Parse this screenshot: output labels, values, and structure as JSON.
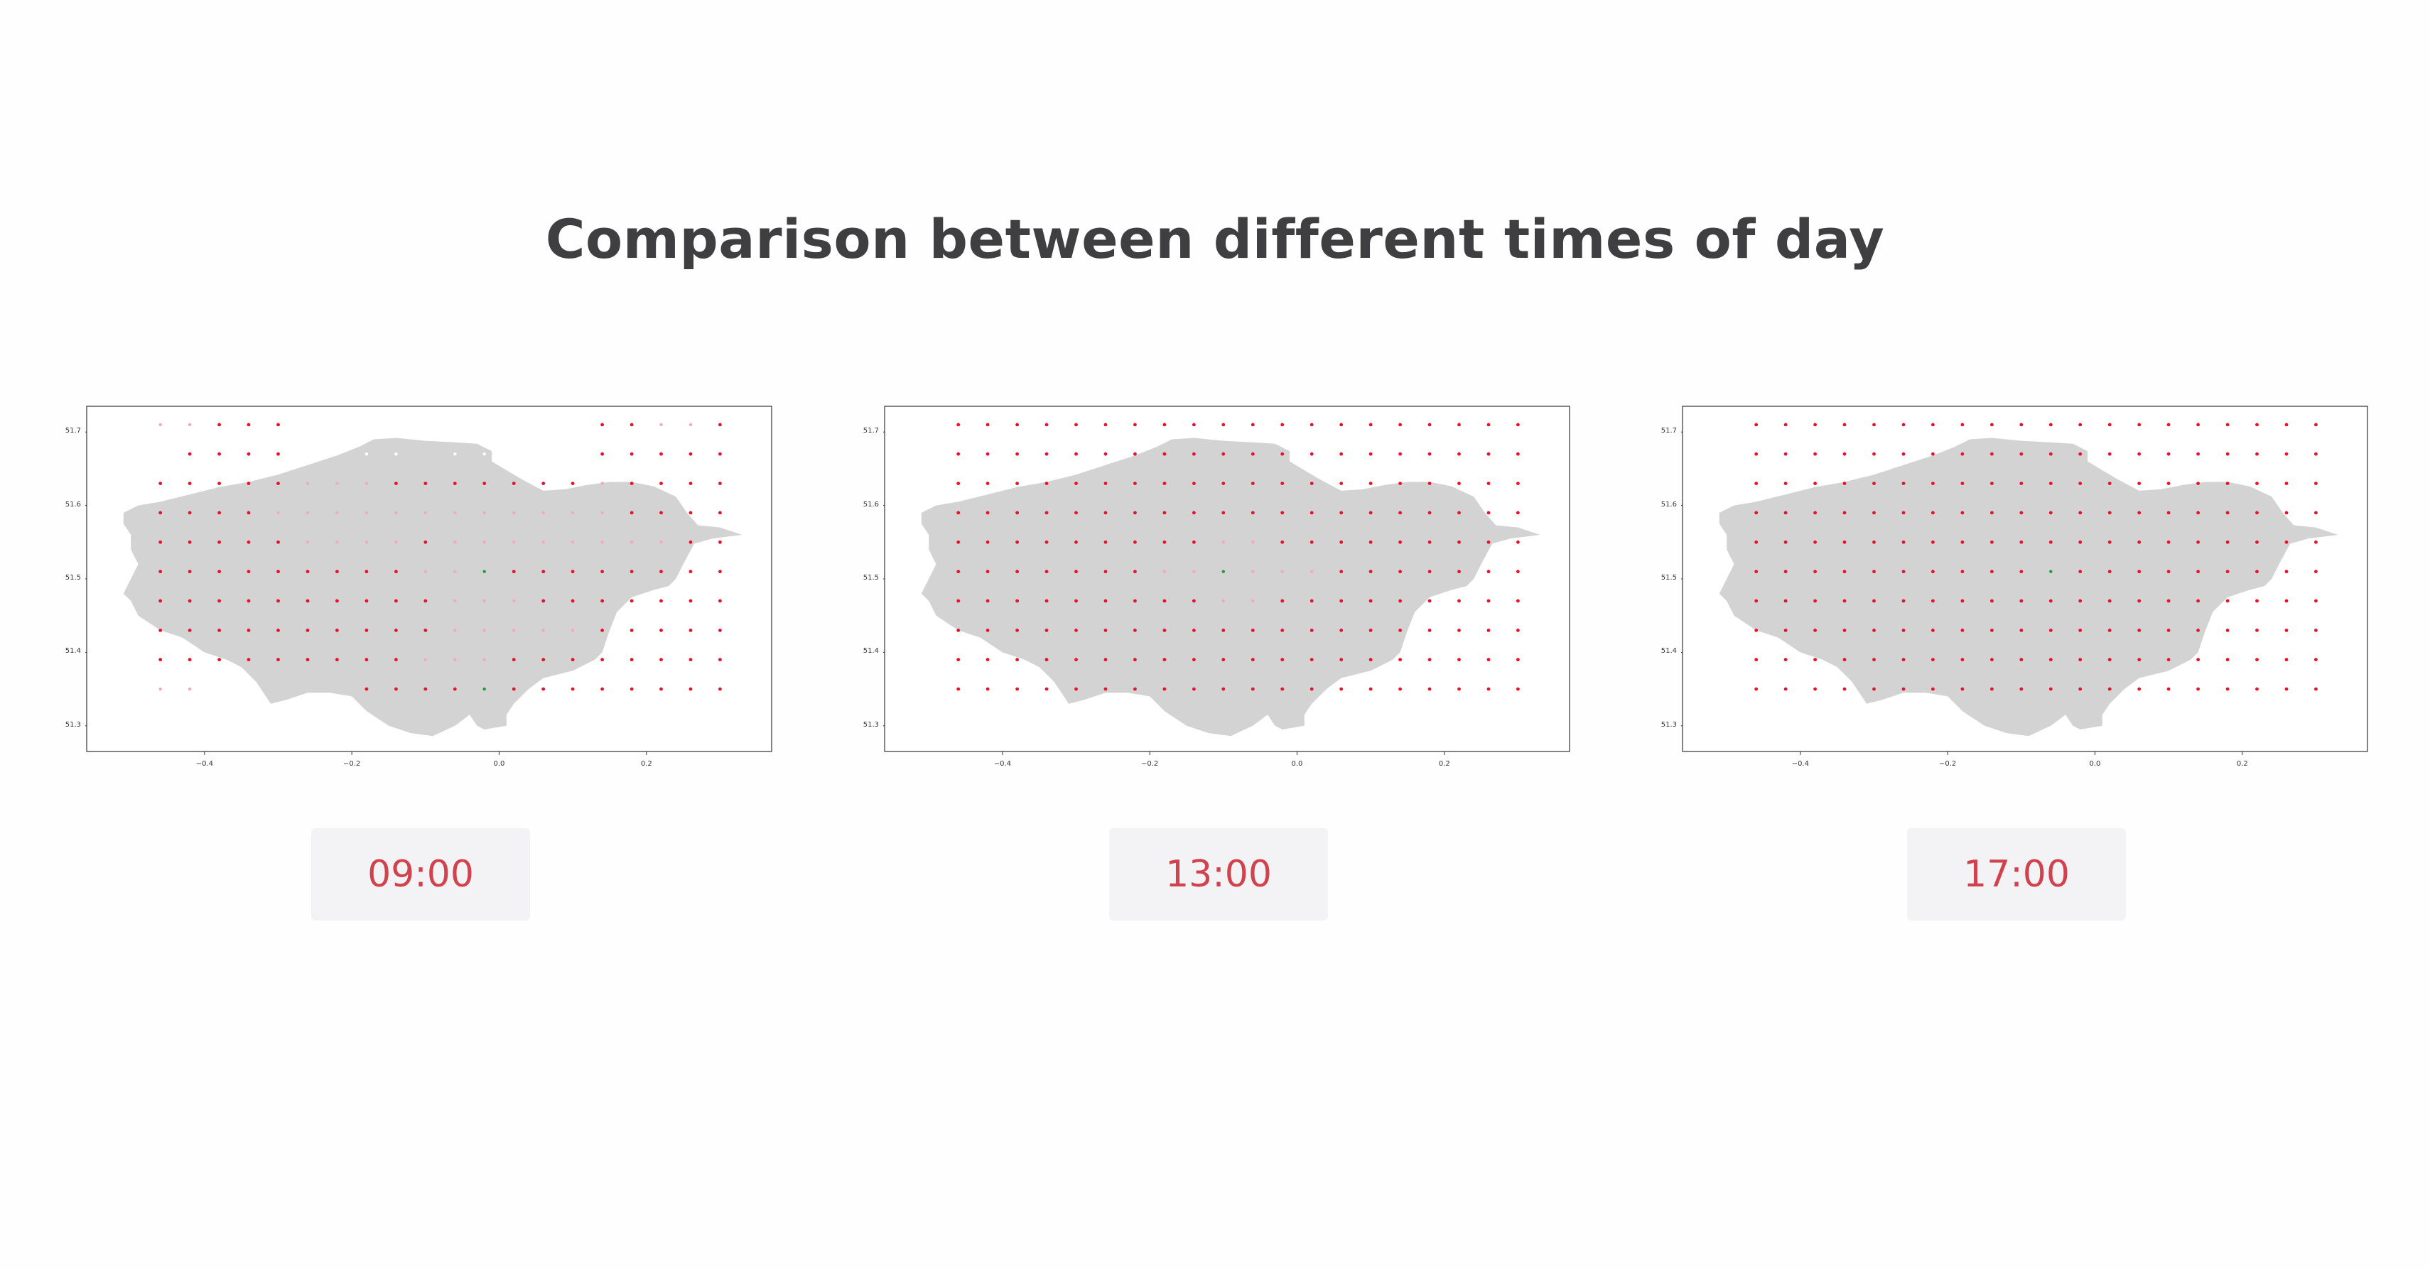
{
  "page": {
    "title": "Comparison between different times of day"
  },
  "colors": {
    "title": "#3f3f41",
    "badge_text": "#d0434e",
    "badge_bg": "#f3f3f5",
    "land": "#d3d3d3",
    "point_red": "#e8112d",
    "point_pink": "#f5a9b4",
    "point_white": "#ffffff",
    "point_green": "#1a9e3a"
  },
  "chart_data": [
    {
      "type": "scatter",
      "time_label": "09:00",
      "xlim": [
        -0.56,
        0.37
      ],
      "ylim": [
        51.265,
        51.735
      ],
      "x_ticks": [
        -0.4,
        -0.2,
        0.0,
        0.2
      ],
      "x_tick_labels": [
        "−0.4",
        "−0.2",
        "0.0",
        "0.2"
      ],
      "y_ticks": [
        51.3,
        51.4,
        51.5,
        51.6,
        51.7
      ],
      "y_tick_labels": [
        "51.3",
        "51.4",
        "51.5",
        "51.6",
        "51.7"
      ],
      "grid": false,
      "grid_x": [
        -0.46,
        -0.42,
        -0.38,
        -0.34,
        -0.3,
        -0.26,
        -0.22,
        -0.18,
        -0.14,
        -0.1,
        -0.06,
        -0.02,
        0.02,
        0.06,
        0.1,
        0.14,
        0.18,
        0.22,
        0.26,
        0.3
      ],
      "grid_y": [
        51.71,
        51.67,
        51.63,
        51.59,
        51.55,
        51.51,
        51.47,
        51.43,
        51.39,
        51.35
      ],
      "categories_legend": [
        "red",
        "pink",
        "white",
        "green"
      ],
      "values": [
        [
          2,
          2,
          1,
          1,
          1,
          0,
          0,
          -1,
          -1,
          -1,
          -1,
          -1,
          -1,
          -1,
          0,
          1,
          1,
          2,
          2,
          1
        ],
        [
          -1,
          1,
          1,
          1,
          1,
          0,
          -1,
          0,
          0,
          -1,
          0,
          0,
          0,
          -1,
          0,
          1,
          1,
          1,
          1,
          1
        ],
        [
          1,
          1,
          1,
          1,
          1,
          2,
          2,
          2,
          1,
          1,
          1,
          1,
          1,
          1,
          1,
          2,
          1,
          1,
          1,
          1
        ],
        [
          1,
          1,
          1,
          1,
          2,
          2,
          2,
          2,
          2,
          2,
          2,
          2,
          2,
          2,
          2,
          2,
          1,
          1,
          1,
          1
        ],
        [
          1,
          1,
          1,
          1,
          1,
          2,
          2,
          2,
          2,
          1,
          2,
          2,
          2,
          2,
          2,
          2,
          2,
          2,
          1,
          1
        ],
        [
          1,
          1,
          1,
          1,
          1,
          1,
          1,
          1,
          1,
          2,
          2,
          3,
          1,
          1,
          1,
          1,
          1,
          1,
          1,
          1
        ],
        [
          1,
          1,
          1,
          1,
          1,
          1,
          1,
          1,
          1,
          1,
          2,
          2,
          2,
          1,
          1,
          1,
          1,
          1,
          1,
          1
        ],
        [
          1,
          1,
          1,
          1,
          1,
          1,
          1,
          1,
          1,
          1,
          2,
          2,
          2,
          2,
          2,
          1,
          1,
          1,
          1,
          1
        ],
        [
          1,
          1,
          1,
          1,
          1,
          1,
          1,
          1,
          1,
          2,
          2,
          2,
          1,
          1,
          1,
          1,
          1,
          1,
          1,
          1
        ],
        [
          2,
          2,
          -1,
          -1,
          -1,
          -1,
          -1,
          1,
          1,
          1,
          1,
          3,
          1,
          1,
          1,
          1,
          1,
          1,
          1,
          1
        ]
      ]
    },
    {
      "type": "scatter",
      "time_label": "13:00",
      "xlim": [
        -0.56,
        0.37
      ],
      "ylim": [
        51.265,
        51.735
      ],
      "x_ticks": [
        -0.4,
        -0.2,
        0.0,
        0.2
      ],
      "x_tick_labels": [
        "−0.4",
        "−0.2",
        "0.0",
        "0.2"
      ],
      "y_ticks": [
        51.3,
        51.4,
        51.5,
        51.6,
        51.7
      ],
      "y_tick_labels": [
        "51.3",
        "51.4",
        "51.5",
        "51.6",
        "51.7"
      ],
      "grid": false,
      "grid_x": [
        -0.46,
        -0.42,
        -0.38,
        -0.34,
        -0.3,
        -0.26,
        -0.22,
        -0.18,
        -0.14,
        -0.1,
        -0.06,
        -0.02,
        0.02,
        0.06,
        0.1,
        0.14,
        0.18,
        0.22,
        0.26,
        0.3
      ],
      "grid_y": [
        51.71,
        51.67,
        51.63,
        51.59,
        51.55,
        51.51,
        51.47,
        51.43,
        51.39,
        51.35
      ],
      "categories_legend": [
        "red",
        "pink",
        "white",
        "green"
      ],
      "values": [
        [
          1,
          1,
          1,
          1,
          1,
          1,
          1,
          1,
          1,
          1,
          1,
          1,
          1,
          1,
          1,
          1,
          1,
          1,
          1,
          1
        ],
        [
          1,
          1,
          1,
          1,
          1,
          1,
          1,
          1,
          1,
          1,
          1,
          1,
          1,
          1,
          1,
          1,
          1,
          1,
          1,
          1
        ],
        [
          1,
          1,
          1,
          1,
          1,
          1,
          1,
          1,
          1,
          1,
          1,
          1,
          1,
          1,
          1,
          1,
          1,
          1,
          1,
          1
        ],
        [
          1,
          1,
          1,
          1,
          1,
          1,
          1,
          1,
          1,
          1,
          1,
          1,
          1,
          1,
          1,
          1,
          1,
          1,
          1,
          1
        ],
        [
          1,
          1,
          1,
          1,
          1,
          1,
          1,
          1,
          1,
          2,
          2,
          1,
          1,
          1,
          1,
          1,
          1,
          1,
          1,
          1
        ],
        [
          1,
          1,
          1,
          1,
          1,
          1,
          1,
          2,
          2,
          3,
          2,
          2,
          2,
          1,
          1,
          1,
          1,
          1,
          1,
          1
        ],
        [
          1,
          1,
          1,
          1,
          1,
          1,
          1,
          1,
          1,
          2,
          2,
          1,
          1,
          1,
          1,
          1,
          1,
          1,
          1,
          1
        ],
        [
          1,
          1,
          1,
          1,
          1,
          1,
          1,
          1,
          1,
          1,
          1,
          1,
          1,
          1,
          1,
          1,
          1,
          1,
          1,
          1
        ],
        [
          1,
          1,
          1,
          1,
          1,
          1,
          1,
          1,
          1,
          1,
          1,
          1,
          1,
          1,
          1,
          1,
          1,
          1,
          1,
          1
        ],
        [
          1,
          1,
          1,
          1,
          1,
          1,
          1,
          1,
          1,
          1,
          1,
          1,
          1,
          1,
          1,
          1,
          1,
          1,
          1,
          1
        ]
      ]
    },
    {
      "type": "scatter",
      "time_label": "17:00",
      "xlim": [
        -0.56,
        0.37
      ],
      "ylim": [
        51.265,
        51.735
      ],
      "x_ticks": [
        -0.4,
        -0.2,
        0.0,
        0.2
      ],
      "x_tick_labels": [
        "−0.4",
        "−0.2",
        "0.0",
        "0.2"
      ],
      "y_ticks": [
        51.3,
        51.4,
        51.5,
        51.6,
        51.7
      ],
      "y_tick_labels": [
        "51.3",
        "51.4",
        "51.5",
        "51.6",
        "51.7"
      ],
      "grid": false,
      "grid_x": [
        -0.46,
        -0.42,
        -0.38,
        -0.34,
        -0.3,
        -0.26,
        -0.22,
        -0.18,
        -0.14,
        -0.1,
        -0.06,
        -0.02,
        0.02,
        0.06,
        0.1,
        0.14,
        0.18,
        0.22,
        0.26,
        0.3
      ],
      "grid_y": [
        51.71,
        51.67,
        51.63,
        51.59,
        51.55,
        51.51,
        51.47,
        51.43,
        51.39,
        51.35
      ],
      "categories_legend": [
        "red",
        "pink",
        "white",
        "green"
      ],
      "values": [
        [
          1,
          1,
          1,
          1,
          1,
          1,
          1,
          1,
          1,
          1,
          1,
          1,
          1,
          1,
          1,
          1,
          1,
          1,
          1,
          1
        ],
        [
          1,
          1,
          1,
          1,
          1,
          1,
          1,
          1,
          1,
          1,
          1,
          1,
          1,
          1,
          1,
          1,
          1,
          1,
          1,
          1
        ],
        [
          1,
          1,
          1,
          1,
          1,
          1,
          1,
          1,
          1,
          1,
          1,
          1,
          1,
          1,
          1,
          1,
          1,
          1,
          1,
          1
        ],
        [
          1,
          1,
          1,
          1,
          1,
          1,
          1,
          1,
          1,
          1,
          1,
          1,
          1,
          1,
          1,
          1,
          1,
          1,
          1,
          1
        ],
        [
          1,
          1,
          1,
          1,
          1,
          1,
          1,
          1,
          1,
          1,
          1,
          1,
          1,
          1,
          1,
          1,
          1,
          1,
          1,
          1
        ],
        [
          1,
          1,
          1,
          1,
          1,
          1,
          1,
          1,
          1,
          1,
          3,
          1,
          1,
          1,
          1,
          1,
          1,
          1,
          1,
          1
        ],
        [
          1,
          1,
          1,
          1,
          1,
          1,
          1,
          1,
          1,
          1,
          1,
          1,
          1,
          1,
          1,
          1,
          1,
          1,
          1,
          1
        ],
        [
          1,
          1,
          1,
          1,
          1,
          1,
          1,
          1,
          1,
          1,
          1,
          1,
          1,
          1,
          1,
          1,
          1,
          1,
          1,
          1
        ],
        [
          1,
          1,
          1,
          1,
          1,
          1,
          1,
          1,
          1,
          1,
          1,
          1,
          1,
          1,
          1,
          1,
          1,
          1,
          1,
          1
        ],
        [
          1,
          1,
          1,
          1,
          1,
          1,
          1,
          1,
          1,
          1,
          1,
          1,
          1,
          1,
          1,
          1,
          1,
          1,
          1,
          1
        ]
      ]
    }
  ]
}
